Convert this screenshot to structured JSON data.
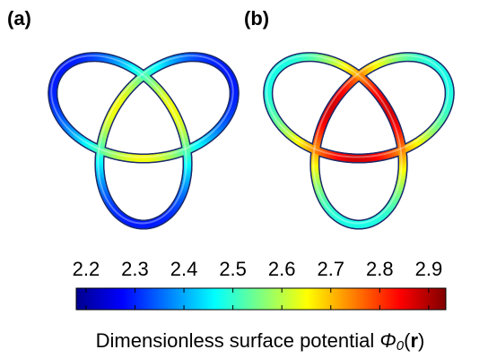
{
  "panels": [
    {
      "label": "(a)"
    },
    {
      "label": "(b)"
    }
  ],
  "colorbar": {
    "lim": [
      2.18,
      2.935
    ],
    "ticks": [
      2.2,
      2.3,
      2.4,
      2.5,
      2.6,
      2.7,
      2.8,
      2.9
    ],
    "label": [
      "Dimensionless surface potential ",
      "Φ",
      "0",
      "(",
      "r",
      ")"
    ]
  }
}
